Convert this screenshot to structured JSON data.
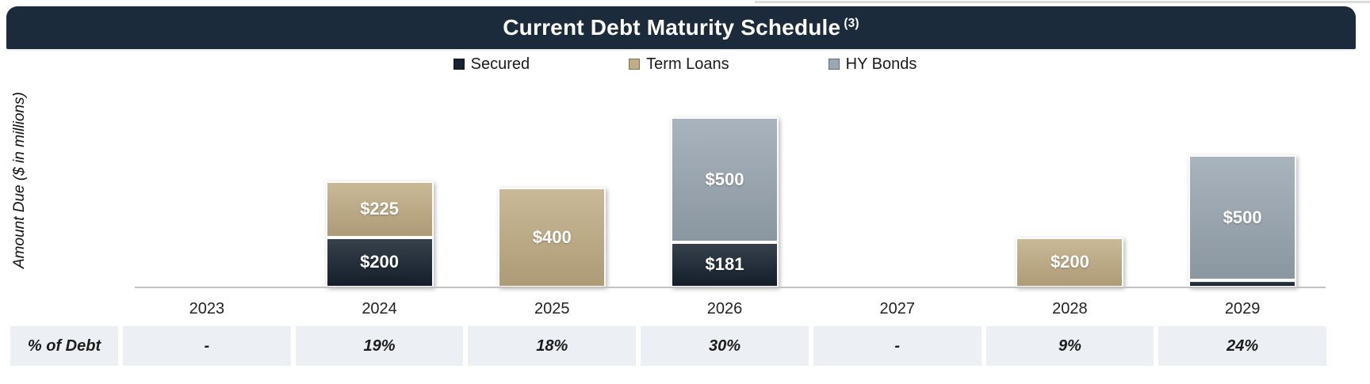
{
  "header": {
    "title": "Current Debt Maturity Schedule",
    "superscript": "(3)",
    "bar_color": "#1C2B3B",
    "text_color": "#FFFFFF"
  },
  "y_axis_label": "Amount Due ($ in millions)",
  "chart_data": {
    "type": "bar",
    "stacked": true,
    "title": "Current Debt Maturity Schedule (3)",
    "ylabel": "Amount Due ($ in millions)",
    "xlabel": "",
    "categories": [
      "2023",
      "2024",
      "2025",
      "2026",
      "2027",
      "2028",
      "2029"
    ],
    "series": [
      {
        "key": "secured",
        "name": "Secured",
        "color": "#16222F",
        "values": [
          0,
          200,
          0,
          181,
          0,
          0,
          30
        ],
        "data_labels": [
          "",
          "$200",
          "",
          "$181",
          "",
          "",
          ""
        ]
      },
      {
        "key": "term-loans",
        "name": "Term Loans",
        "color": "#C1AD85",
        "values": [
          0,
          225,
          400,
          0,
          0,
          200,
          0
        ],
        "data_labels": [
          "",
          "$225",
          "$400",
          "",
          "",
          "$200",
          ""
        ]
      },
      {
        "key": "hy-bonds",
        "name": "HY Bonds",
        "color": "#9AA7B2",
        "values": [
          0,
          0,
          0,
          500,
          0,
          0,
          500
        ],
        "data_labels": [
          "",
          "",
          "",
          "$500",
          "",
          "",
          "$500"
        ]
      }
    ],
    "ylim": [
      0,
      750
    ],
    "legend_position": "top",
    "gridlines": false
  },
  "table": {
    "row_label": "% of Debt",
    "values": [
      "-",
      "19%",
      "18%",
      "30%",
      "-",
      "9%",
      "24%"
    ],
    "cell_background": "#ECF0F4"
  }
}
